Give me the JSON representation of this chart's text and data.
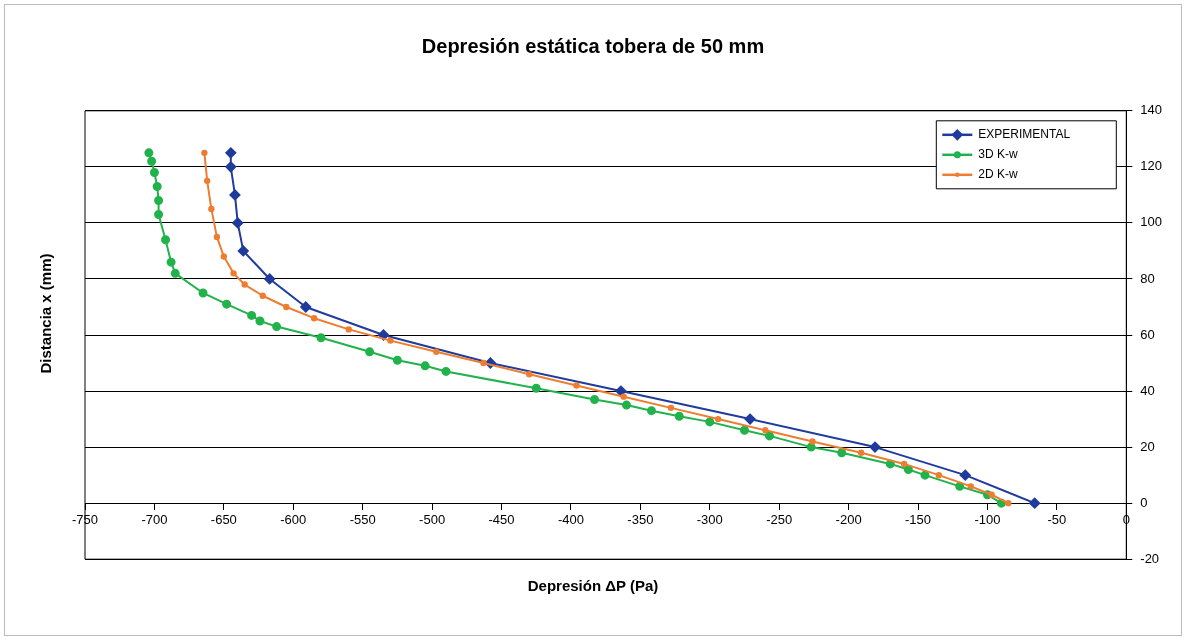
{
  "chart_data": {
    "type": "line",
    "title": "Depresión estática tobera de 50 mm",
    "xlabel": "Depresión ΔP (Pa)",
    "ylabel": "Distancia x (mm)",
    "xlim": [
      -750,
      0
    ],
    "xticks": [
      -750,
      -700,
      -650,
      -600,
      -550,
      -500,
      -450,
      -400,
      -350,
      -300,
      -250,
      -200,
      -150,
      -100,
      -50,
      0
    ],
    "ylim": [
      -20,
      140
    ],
    "yticks": [
      -20,
      0,
      20,
      40,
      60,
      80,
      100,
      120,
      140
    ],
    "grid": "y",
    "legend": "top right",
    "series": [
      {
        "name": "EXPERIMENTAL",
        "color": "#1f3c9c",
        "marker": "diamond",
        "x": [
          -645,
          -645,
          -642,
          -640,
          -636,
          -617,
          -591,
          -535,
          -458,
          -364,
          -271,
          -181,
          -116,
          -66
        ],
        "values": [
          125,
          120,
          110,
          100,
          90,
          80,
          70,
          60,
          50,
          40,
          30,
          20,
          10,
          0
        ]
      },
      {
        "name": "3D K-w",
        "color": "#22b24c",
        "marker": "circle",
        "x": [
          -704,
          -702,
          -700,
          -698,
          -697,
          -697,
          -692,
          -688,
          -685,
          -665,
          -648,
          -630,
          -624,
          -612,
          -580,
          -545,
          -525,
          -505,
          -490,
          -425,
          -383,
          -360,
          -342,
          -322,
          -300,
          -275,
          -257,
          -227,
          -205,
          -170,
          -157,
          -145,
          -120,
          -100,
          -90
        ],
        "values": [
          125,
          122,
          118,
          113,
          108,
          103,
          94,
          86,
          82,
          75,
          71,
          67,
          65,
          63,
          59,
          54,
          51,
          49,
          47,
          41,
          37,
          35,
          33,
          31,
          29,
          26,
          24,
          20,
          18,
          14,
          12,
          10,
          6,
          3,
          0
        ]
      },
      {
        "name": "2D K-w",
        "color": "#ed7d31",
        "marker": "circle",
        "x": [
          -664,
          -662,
          -659,
          -655,
          -650,
          -643,
          -635,
          -622,
          -605,
          -585,
          -560,
          -530,
          -497,
          -463,
          -430,
          -396,
          -362,
          -328,
          -294,
          -260,
          -226,
          -191,
          -160,
          -135,
          -112,
          -97,
          -85
        ],
        "values": [
          125,
          115,
          105,
          95,
          88,
          82,
          78,
          74,
          70,
          66,
          62,
          58,
          54,
          50,
          46,
          42,
          38,
          34,
          30,
          26,
          22,
          18,
          14,
          10,
          6,
          3,
          0
        ]
      }
    ]
  }
}
